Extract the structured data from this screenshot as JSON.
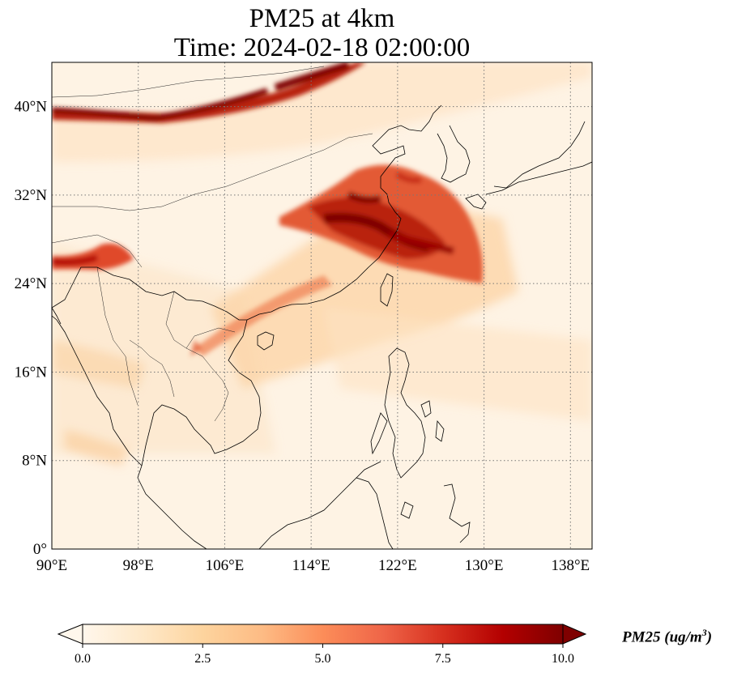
{
  "title": {
    "line1": "PM25 at 4km",
    "line2": "Time: 2024-02-18 02:00:00"
  },
  "map": {
    "lon_range": [
      90,
      140
    ],
    "lat_range": [
      0,
      44
    ],
    "lon_ticks": [
      "90°E",
      "98°E",
      "106°E",
      "114°E",
      "122°E",
      "130°E",
      "138°E"
    ],
    "lon_tick_values": [
      90,
      98,
      106,
      114,
      122,
      130,
      138
    ],
    "lat_ticks": [
      "0°",
      "8°N",
      "16°N",
      "24°N",
      "32°N",
      "40°N"
    ],
    "lat_tick_values": [
      0,
      8,
      16,
      24,
      32,
      40
    ],
    "gridlines": "dotted",
    "colormap": "OrRd"
  },
  "colorbar": {
    "label_main": "PM25 (ug/m",
    "label_sup": "3",
    "label_close": ")",
    "ticks": [
      "0.0",
      "2.5",
      "5.0",
      "7.5",
      "10.0"
    ],
    "tick_values": [
      0,
      2.5,
      5,
      7.5,
      10
    ],
    "range": [
      0,
      10
    ],
    "extend": "both",
    "colors": [
      "#fff7ec",
      "#fee8c8",
      "#fdd49e",
      "#fdbb84",
      "#fc8d59",
      "#ef6548",
      "#d7301f",
      "#b30000",
      "#7f0000"
    ]
  }
}
